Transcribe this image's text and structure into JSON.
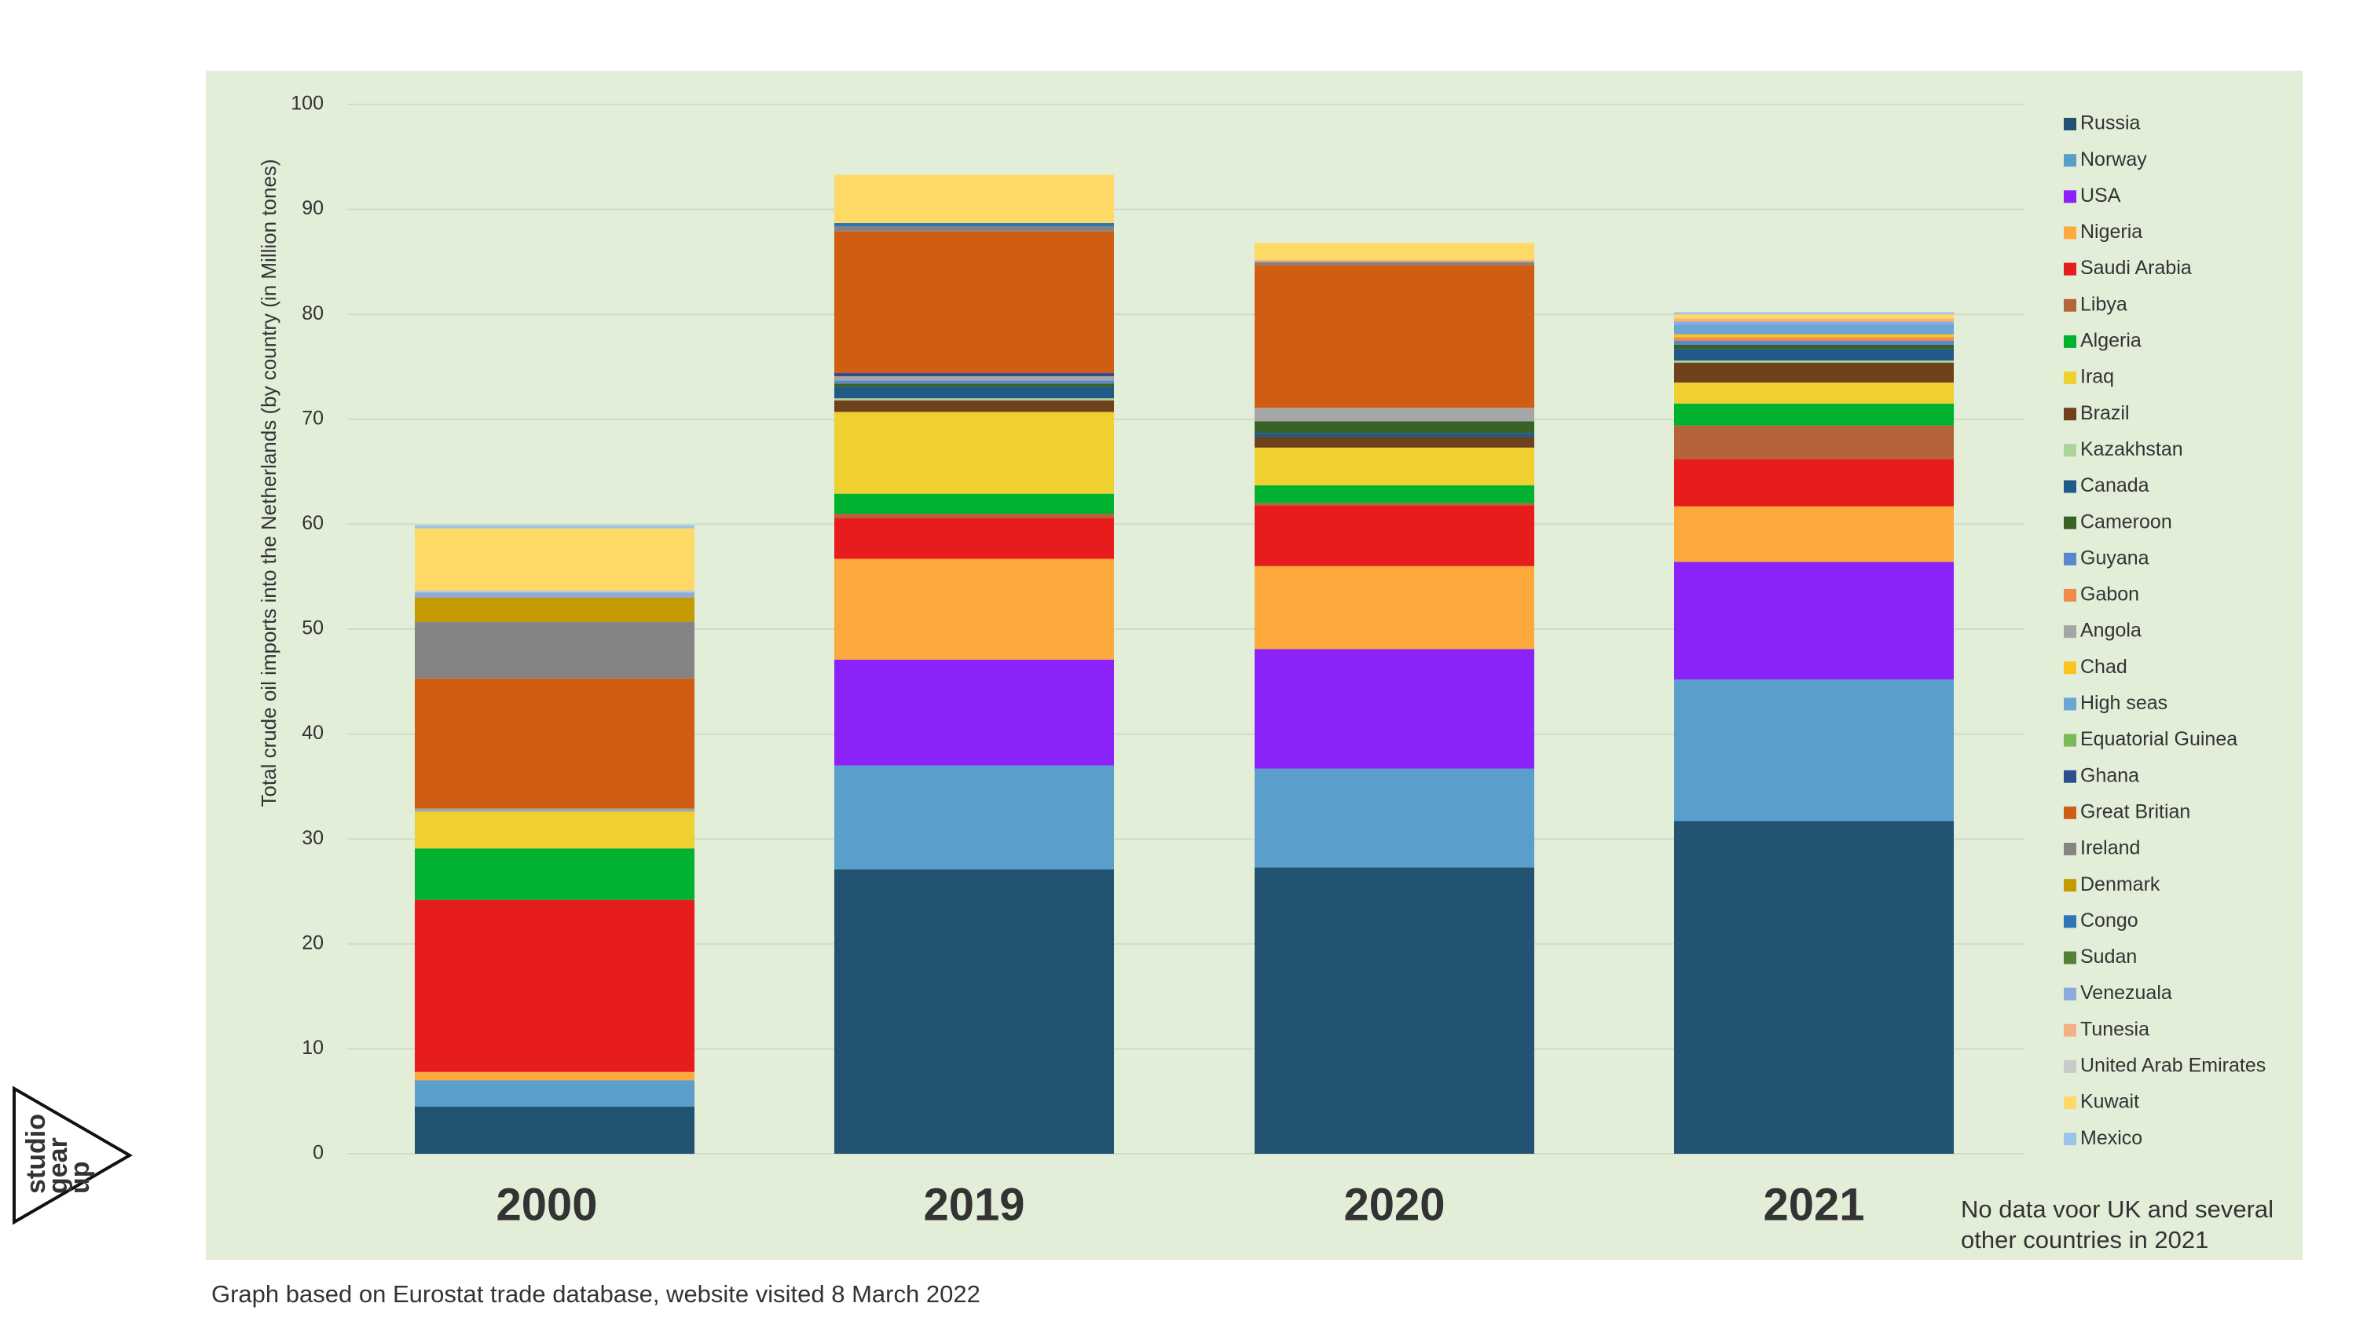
{
  "chart_data": {
    "type": "stacked_bar",
    "ylabel": "Total crude oil imports into the Netherlands (by country (in Million tones)",
    "categories": [
      "2000",
      "2019",
      "2020",
      "2021"
    ],
    "ylim": [
      0,
      100
    ],
    "yticks": [
      0,
      10,
      20,
      30,
      40,
      50,
      60,
      70,
      80,
      90,
      100
    ],
    "grid": true,
    "legend": "right",
    "annotations": [
      "No data voor UK and several",
      "other countries in 2021"
    ],
    "source": "Graph based on Eurostat trade database, website visited 8 March 2022",
    "series": [
      {
        "name": "Russia",
        "color": "#235373",
        "values": [
          4.5,
          27.1,
          27.3,
          31.7
        ]
      },
      {
        "name": "Norway",
        "color": "#5a9ecb",
        "values": [
          2.5,
          9.9,
          9.4,
          13.5
        ]
      },
      {
        "name": "USA",
        "color": "#8b23f8",
        "values": [
          0,
          10.1,
          11.4,
          11.2
        ]
      },
      {
        "name": "Nigeria",
        "color": "#fda93b",
        "values": [
          0.8,
          9.6,
          7.9,
          5.3
        ]
      },
      {
        "name": "Saudi Arabia",
        "color": "#e71c1c",
        "values": [
          16.4,
          3.9,
          5.8,
          4.5
        ]
      },
      {
        "name": "Libya",
        "color": "#b5633a",
        "values": [
          0,
          0.4,
          0.2,
          3.2
        ]
      },
      {
        "name": "Algeria",
        "color": "#00b22f",
        "values": [
          4.9,
          1.9,
          1.7,
          2.1
        ]
      },
      {
        "name": "Iraq",
        "color": "#f0d030",
        "values": [
          3.5,
          7.8,
          3.6,
          2.0
        ]
      },
      {
        "name": "Brazil",
        "color": "#70411d",
        "values": [
          0,
          1.1,
          1.0,
          1.9
        ]
      },
      {
        "name": "Kazakhstan",
        "color": "#aad49a",
        "values": [
          0,
          0.2,
          0,
          0.2
        ]
      },
      {
        "name": "Canada",
        "color": "#215a88",
        "values": [
          0,
          1.1,
          0.4,
          1.1
        ]
      },
      {
        "name": "Cameroon",
        "color": "#386226",
        "values": [
          0,
          0.3,
          1.1,
          0.4
        ]
      },
      {
        "name": "Guyana",
        "color": "#5b88cc",
        "values": [
          0,
          0.3,
          0,
          0.4
        ]
      },
      {
        "name": "Gabon",
        "color": "#f08a4a",
        "values": [
          0,
          0,
          0,
          0.3
        ]
      },
      {
        "name": "Angola",
        "color": "#a5a5a5",
        "values": [
          0.3,
          0.4,
          1.3,
          0
        ]
      },
      {
        "name": "Chad",
        "color": "#fcc31c",
        "values": [
          0,
          0,
          0,
          0.3
        ]
      },
      {
        "name": "High seas",
        "color": "#6aa6d4",
        "values": [
          0,
          0,
          0,
          0.9
        ]
      },
      {
        "name": "Equatorial Guinea",
        "color": "#7ab858",
        "values": [
          0,
          0,
          0,
          0
        ]
      },
      {
        "name": "Ghana",
        "color": "#2b4f90",
        "values": [
          0,
          0.3,
          0,
          0
        ]
      },
      {
        "name": "Great Britian",
        "color": "#d05e12",
        "values": [
          12.4,
          13.5,
          13.6,
          0
        ]
      },
      {
        "name": "Ireland",
        "color": "#848484",
        "values": [
          5.4,
          0.5,
          0.3,
          0
        ]
      },
      {
        "name": "Denmark",
        "color": "#c49a00",
        "values": [
          2.3,
          0,
          0,
          0
        ]
      },
      {
        "name": "Congo",
        "color": "#2e75b6",
        "values": [
          0,
          0.3,
          0,
          0
        ]
      },
      {
        "name": "Sudan",
        "color": "#548235",
        "values": [
          0,
          0,
          0,
          0
        ]
      },
      {
        "name": "Venezuala",
        "color": "#8ea9db",
        "values": [
          0.5,
          0,
          0,
          0.3
        ]
      },
      {
        "name": "Tunesia",
        "color": "#f4b183",
        "values": [
          0,
          0,
          0.2,
          0.3
        ]
      },
      {
        "name": "United Arab Emirates",
        "color": "#c9c9c9",
        "values": [
          0.2,
          0,
          0,
          0
        ]
      },
      {
        "name": "Kuwait",
        "color": "#ffd966",
        "values": [
          5.9,
          4.6,
          1.6,
          0.4
        ]
      },
      {
        "name": "Mexico",
        "color": "#9dc3e6",
        "values": [
          0.3,
          0,
          0,
          0.2
        ]
      }
    ]
  },
  "logo": {
    "lines": [
      "studio",
      "gear",
      "up"
    ]
  }
}
